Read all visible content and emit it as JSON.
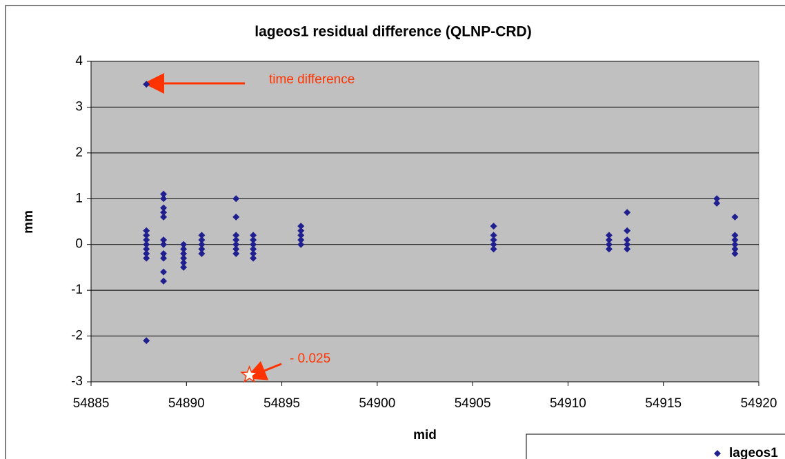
{
  "chart_data": {
    "type": "scatter",
    "title": "lageos1 residual difference (QLNP-CRD)",
    "x_label": "mid",
    "y_label": "mm",
    "xlim": [
      54885,
      54920
    ],
    "xticks": [
      54885,
      54890,
      54895,
      54900,
      54905,
      54910,
      54915,
      54920
    ],
    "ylim": [
      -3,
      4
    ],
    "yticks": [
      -3,
      -2,
      -1,
      0,
      1,
      2,
      3,
      4
    ],
    "grid": true,
    "legend": "bottom-right",
    "series": [
      {
        "name": "lageos1",
        "color": "#1f1f8f",
        "x": [
          54887.9,
          54887.9,
          54887.9,
          54887.9,
          54887.9,
          54887.9,
          54887.9,
          54887.9,
          54887.9,
          54888.8,
          54888.8,
          54888.8,
          54888.8,
          54888.8,
          54888.8,
          54888.8,
          54888.8,
          54888.8,
          54888.8,
          54888.8,
          54889.85,
          54889.85,
          54889.85,
          54889.85,
          54889.85,
          54889.85,
          54890.8,
          54890.8,
          54890.8,
          54890.8,
          54890.8,
          54892.6,
          54892.6,
          54892.6,
          54892.6,
          54892.6,
          54892.6,
          54892.6,
          54893.5,
          54893.5,
          54893.5,
          54893.5,
          54893.5,
          54893.5,
          54896.0,
          54896.0,
          54896.0,
          54896.0,
          54896.0,
          54906.1,
          54906.1,
          54906.1,
          54906.1,
          54906.1,
          54912.15,
          54912.15,
          54912.15,
          54912.15,
          54913.1,
          54913.1,
          54913.1,
          54913.1,
          54913.1,
          54917.8,
          54917.8,
          54918.75,
          54918.75,
          54918.75,
          54918.75,
          54918.75,
          54918.75
        ],
        "values": [
          3.5,
          0.3,
          0.2,
          0.1,
          0,
          -0.1,
          -0.2,
          -0.3,
          -2.1,
          1.1,
          1.0,
          0.8,
          0.7,
          0.6,
          0.1,
          0,
          -0.2,
          -0.3,
          -0.6,
          -0.8,
          0,
          -0.1,
          -0.2,
          -0.3,
          -0.4,
          -0.5,
          0.2,
          0.1,
          0,
          -0.1,
          -0.2,
          1.0,
          0.6,
          0.2,
          0.1,
          0,
          -0.1,
          -0.2,
          0.2,
          0.1,
          0,
          -0.1,
          -0.2,
          -0.3,
          0.4,
          0.3,
          0.2,
          0.1,
          0,
          0.4,
          0.2,
          0.1,
          0,
          -0.1,
          0.2,
          0.1,
          0,
          -0.1,
          0.7,
          0.3,
          0.1,
          0,
          -0.1,
          1.0,
          0.9,
          0.6,
          0.2,
          0.1,
          0,
          -0.1,
          -0.2
        ]
      }
    ],
    "marker": {
      "x": 54893.3,
      "y": -2.85,
      "color": "#ff3300"
    },
    "annotations": [
      "time difference",
      "- 0.025"
    ]
  }
}
